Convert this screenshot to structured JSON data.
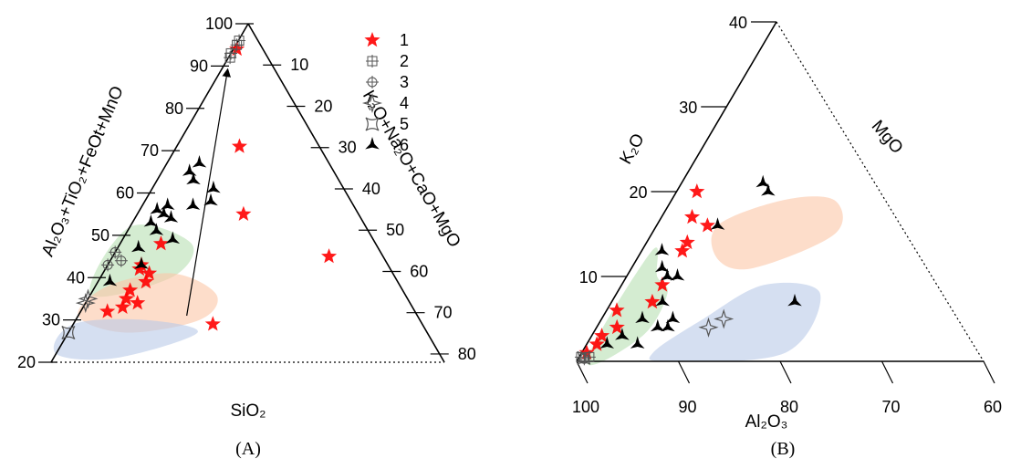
{
  "colors": {
    "star": "#ff0000",
    "six": "#000000",
    "open": "#555555",
    "green_field": "#b7dfb2",
    "orange_field": "#fbc7a6",
    "blue_field": "#b9c9e8"
  },
  "legend": {
    "placement": "top-right of panel A",
    "entries": [
      {
        "label": "1",
        "marker": "red-star-icon"
      },
      {
        "label": "2",
        "marker": "square-cross-icon"
      },
      {
        "label": "3",
        "marker": "circle-cross-icon"
      },
      {
        "label": "4",
        "marker": "open-four-point-star-icon"
      },
      {
        "label": "5",
        "marker": "open-concave-square-icon"
      },
      {
        "label": "6",
        "marker": "black-three-point-star-icon"
      }
    ]
  },
  "chart_data": [
    {
      "type": "scatter",
      "panel_label": "(A)",
      "ternary": true,
      "left_axis_label": "Al₂O₃+TiO₂+FeOt+MnO",
      "right_axis_label": "K₂O+Na₂O+CaO+MgO",
      "bottom_label": "SiO₂",
      "left_ticks": [
        "100",
        "90",
        "80",
        "70",
        "60",
        "50",
        "40",
        "30",
        "20"
      ],
      "right_ticks": [
        "10",
        "20",
        "30",
        "40",
        "50",
        "60",
        "70",
        "80"
      ],
      "series": [
        {
          "marker": "star",
          "points": [
            [
              94,
              3
            ],
            [
              71,
              11
            ],
            [
              55,
              12
            ],
            [
              48,
              4
            ],
            [
              45,
              20
            ],
            [
              43,
              3
            ],
            [
              42,
              3
            ],
            [
              41,
              4
            ],
            [
              39,
              4
            ],
            [
              37,
              3
            ],
            [
              35,
              3
            ],
            [
              34,
              4
            ],
            [
              33,
              3
            ],
            [
              32,
              2
            ],
            [
              29,
              10
            ]
          ]
        },
        {
          "marker": "square-cross",
          "points": [
            [
              96,
              1
            ],
            [
              95,
              1
            ],
            [
              93,
              0
            ],
            [
              92,
              1
            ]
          ]
        },
        {
          "marker": "circle-cross",
          "points": [
            [
              46,
              0
            ],
            [
              44,
              1
            ],
            [
              43,
              0
            ]
          ]
        },
        {
          "marker": "four-star",
          "points": [
            [
              34,
              0
            ],
            [
              35,
              0
            ]
          ]
        },
        {
          "marker": "concave-square",
          "points": [
            [
              27,
              0
            ]
          ]
        },
        {
          "marker": "six",
          "points": [
            [
              67,
              5
            ],
            [
              65,
              4
            ],
            [
              63,
              5
            ],
            [
              61,
              8
            ],
            [
              58,
              8
            ],
            [
              57,
              6
            ],
            [
              57,
              3
            ],
            [
              56,
              2
            ],
            [
              55,
              3
            ],
            [
              54,
              4
            ],
            [
              53,
              2
            ],
            [
              51,
              3
            ],
            [
              49,
              5
            ],
            [
              47,
              2
            ],
            [
              43,
              3
            ],
            [
              39,
              1
            ]
          ]
        }
      ],
      "fields": [
        {
          "name": "green",
          "outline": [
            [
              52,
              0
            ],
            [
              48,
              7
            ],
            [
              40,
              6
            ],
            [
              36,
              0
            ]
          ]
        },
        {
          "name": "orange",
          "outline": [
            [
              41,
              6
            ],
            [
              36,
              10
            ],
            [
              30,
              9
            ],
            [
              27,
              4
            ],
            [
              31,
              0
            ],
            [
              38,
              1
            ]
          ]
        },
        {
          "name": "blue",
          "outline": [
            [
              30,
              5
            ],
            [
              27,
              9
            ],
            [
              21,
              4
            ],
            [
              22,
              0
            ],
            [
              29,
              0
            ]
          ]
        }
      ],
      "trend_arrow": [
        [
          31,
          8
        ],
        [
          89,
          3
        ]
      ]
    },
    {
      "type": "scatter",
      "panel_label": "(B)",
      "ternary": true,
      "left_axis_label": "K₂O",
      "right_axis_label": "MgO",
      "bottom_label": "Al₂O₃",
      "left_ticks": [
        "10",
        "20",
        "30",
        "40"
      ],
      "bottom_ticks": [
        "100",
        "90",
        "80",
        "70",
        "60"
      ],
      "series": [
        {
          "marker": "star",
          "points": [
            [
              20,
              2
            ],
            [
              17,
              3
            ],
            [
              16,
              5
            ],
            [
              14,
              4
            ],
            [
              13,
              4
            ],
            [
              9,
              4
            ],
            [
              7,
              4
            ],
            [
              6,
              1
            ],
            [
              4,
              2
            ],
            [
              3,
              1
            ],
            [
              2,
              1
            ],
            [
              1,
              0.5
            ]
          ]
        },
        {
          "marker": "square-cross",
          "points": [
            [
              0.5,
              0.2
            ],
            [
              0.5,
              1
            ]
          ]
        },
        {
          "marker": "circle-cross",
          "points": [
            [
              0.3,
              0.6
            ]
          ]
        },
        {
          "marker": "four-star",
          "points": [
            [
              4,
              11
            ],
            [
              5,
              12
            ]
          ]
        },
        {
          "marker": "concave-square",
          "points": [
            [
              0.4,
              0.5
            ]
          ]
        },
        {
          "marker": "six",
          "points": [
            [
              21,
              8
            ],
            [
              20,
              9
            ],
            [
              16,
              6
            ],
            [
              13,
              2
            ],
            [
              11,
              3
            ],
            [
              10,
              5
            ],
            [
              10,
              4
            ],
            [
              7,
              5
            ],
            [
              5,
              7
            ],
            [
              5,
              4
            ],
            [
              4,
              7
            ],
            [
              4,
              6
            ],
            [
              3,
              3
            ],
            [
              2,
              2
            ],
            [
              2,
              5
            ],
            [
              7,
              18
            ]
          ]
        }
      ],
      "fields": [
        {
          "name": "green",
          "outline": [
            [
              13,
              1
            ],
            [
              10,
              3
            ],
            [
              8,
              5
            ],
            [
              3,
              5
            ],
            [
              0,
              1
            ]
          ]
        },
        {
          "name": "orange",
          "outline": [
            [
              19,
              11
            ],
            [
              16,
              6
            ],
            [
              12,
              8
            ],
            [
              11,
              12
            ],
            [
              15,
              18
            ],
            [
              19,
              16
            ]
          ]
        },
        {
          "name": "blue",
          "outline": [
            [
              9,
              14
            ],
            [
              5,
              10
            ],
            [
              1,
              7
            ],
            [
              0,
              9
            ],
            [
              1,
              20
            ],
            [
              8,
              20
            ]
          ]
        }
      ]
    }
  ]
}
